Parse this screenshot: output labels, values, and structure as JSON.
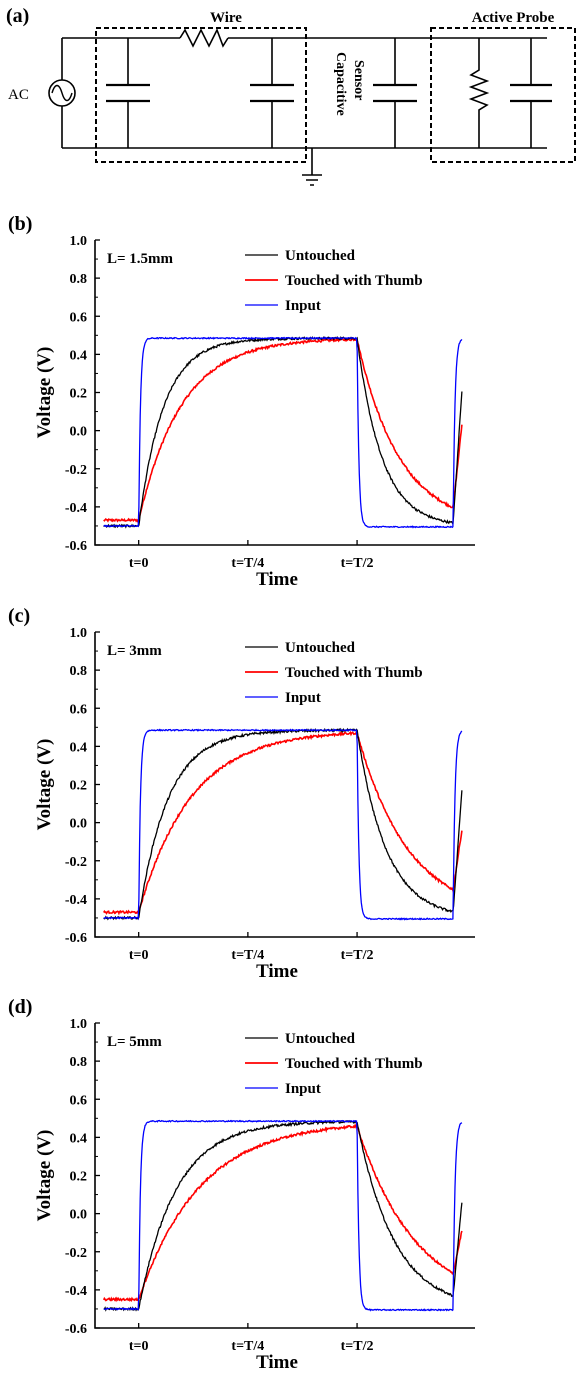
{
  "circuit": {
    "panel_label": "(a)",
    "source_label": "AC",
    "wire_label": "Wire",
    "sensor_label_line1": "Capacitive",
    "sensor_label_line2": "Sensor",
    "probe_label": "Active Probe"
  },
  "chart_data": [
    {
      "type": "line",
      "panel_label": "(b)",
      "annotation": "L= 1.5mm",
      "xlabel": "Time",
      "ylabel": "Voltage (V)",
      "ylim": [
        -0.6,
        1.0
      ],
      "yticks": [
        -0.6,
        -0.4,
        -0.2,
        0.0,
        0.2,
        0.4,
        0.6,
        0.8,
        1.0
      ],
      "ytick_labels": [
        "-0.6",
        "-0.4",
        "-0.2",
        "0.0",
        "0.2",
        "0.4",
        "0.6",
        "0.8",
        "1.0"
      ],
      "xlim": [
        -0.1,
        0.77
      ],
      "xticks": [
        0,
        0.25,
        0.5
      ],
      "xtick_labels": [
        "t=0",
        "t=T/4",
        "t=T/2"
      ],
      "legend_position": "top-right",
      "series": [
        {
          "name": "Untouched",
          "color": "#000000",
          "tau": 0.057,
          "v_start": -0.5,
          "end_fraction": 1.0,
          "last_y": 0.21
        },
        {
          "name": "Touched with Thumb",
          "color": "#ff0000",
          "tau": 0.098,
          "v_start": -0.47,
          "end_fraction": 0.99,
          "last_y": 0.03
        },
        {
          "name": "Input",
          "color": "#0000ff",
          "tau": 0.004,
          "v_start": -0.5,
          "end_fraction": 1.0,
          "last_y": 0.48
        }
      ]
    },
    {
      "type": "line",
      "panel_label": "(c)",
      "annotation": "L= 3mm",
      "xlabel": "Time",
      "ylabel": "Voltage (V)",
      "ylim": [
        -0.6,
        1.0
      ],
      "yticks": [
        -0.6,
        -0.4,
        -0.2,
        0.0,
        0.2,
        0.4,
        0.6,
        0.8,
        1.0
      ],
      "ytick_labels": [
        "-0.6",
        "-0.4",
        "-0.2",
        "0.0",
        "0.2",
        "0.4",
        "0.6",
        "0.8",
        "1.0"
      ],
      "xlim": [
        -0.1,
        0.77
      ],
      "xticks": [
        0,
        0.25,
        0.5
      ],
      "xtick_labels": [
        "t=0",
        "t=T/4",
        "t=T/2"
      ],
      "legend_position": "top-right",
      "series": [
        {
          "name": "Untouched",
          "color": "#000000",
          "tau": 0.067,
          "v_start": -0.5,
          "end_fraction": 1.0,
          "last_y": 0.17
        },
        {
          "name": "Touched with Thumb",
          "color": "#ff0000",
          "tau": 0.12,
          "v_start": -0.47,
          "end_fraction": 0.99,
          "last_y": -0.04
        },
        {
          "name": "Input",
          "color": "#0000ff",
          "tau": 0.004,
          "v_start": -0.5,
          "end_fraction": 1.0,
          "last_y": 0.48
        }
      ]
    },
    {
      "type": "line",
      "panel_label": "(d)",
      "annotation": "L= 5mm",
      "xlabel": "Time",
      "ylabel": "Voltage (V)",
      "ylim": [
        -0.6,
        1.0
      ],
      "yticks": [
        -0.6,
        -0.4,
        -0.2,
        0.0,
        0.2,
        0.4,
        0.6,
        0.8,
        1.0
      ],
      "ytick_labels": [
        "-0.6",
        "-0.4",
        "-0.2",
        "0.0",
        "0.2",
        "0.4",
        "0.6",
        "0.8",
        "1.0"
      ],
      "xlim": [
        -0.1,
        0.77
      ],
      "xticks": [
        0,
        0.25,
        0.5
      ],
      "xtick_labels": [
        "t=0",
        "t=T/4",
        "t=T/2"
      ],
      "legend_position": "top-right",
      "series": [
        {
          "name": "Untouched",
          "color": "#000000",
          "tau": 0.085,
          "v_start": -0.5,
          "end_fraction": 1.0,
          "last_y": 0.06
        },
        {
          "name": "Touched with Thumb",
          "color": "#ff0000",
          "tau": 0.14,
          "v_start": -0.45,
          "end_fraction": 0.97,
          "last_y": -0.09
        },
        {
          "name": "Input",
          "color": "#0000ff",
          "tau": 0.004,
          "v_start": -0.5,
          "end_fraction": 1.0,
          "last_y": 0.48
        }
      ]
    }
  ]
}
